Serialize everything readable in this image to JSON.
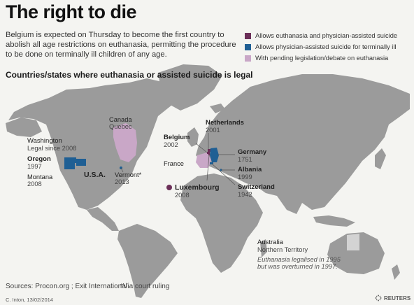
{
  "header": {
    "title": "The right to die",
    "intro": "Belgium is expected on Thursday to become the first country to abolish all age restrictions on euthanasia, permitting the procedure to be done on terminally ill children of any age.",
    "subtitle": "Countries/states where euthanasia or assisted suicide is legal"
  },
  "colors": {
    "euthanasia_and_pas": "#6b2f58",
    "pas_only": "#1f5f94",
    "pending": "#c9a7c7",
    "land": "#9b9b9b",
    "ocean": "#f4f4f1",
    "australia_territory": "#d3d3d3"
  },
  "legend": [
    {
      "label": "Allows euthanasia and physician-assisted suicide",
      "color_key": "euthanasia_and_pas"
    },
    {
      "label": "Allows physician-assisted suicide for terminally ill",
      "color_key": "pas_only"
    },
    {
      "label": "With pending legislation/debate on euthanasia",
      "color_key": "pending"
    }
  ],
  "places": {
    "washington": {
      "name": "Washington",
      "detail": "Legal since 2008"
    },
    "oregon": {
      "name": "Oregon",
      "detail": "1997"
    },
    "montana": {
      "name": "Montana",
      "detail": "2008"
    },
    "usa": {
      "name": "U.S.A."
    },
    "canada": {
      "name": "Canada",
      "detail": "Quebec"
    },
    "vermont": {
      "name": "Vermont*",
      "detail": "2013"
    },
    "netherlands": {
      "name": "Netherlands",
      "detail": "2001"
    },
    "belgium": {
      "name": "Belgium",
      "detail": "2002"
    },
    "france": {
      "name": "France"
    },
    "germany": {
      "name": "Germany",
      "detail": "1751"
    },
    "albania": {
      "name": "Albania",
      "detail": "1999"
    },
    "switzerland": {
      "name": "Switzerland",
      "detail": "1942"
    },
    "luxembourg": {
      "name": "Luxembourg",
      "detail": "2008"
    },
    "australia": {
      "name": "Australia",
      "detail": "Northern Territory",
      "note_line1": "Euthanasia legalised in 1995",
      "note_line2": "but was overturned in 1997."
    }
  },
  "footer": {
    "sources": "Sources: Procon.org ; Exit International",
    "footnote": "*Via court ruling",
    "credit": "C. Inton, 13/02/2014",
    "brand": "REUTERS"
  }
}
